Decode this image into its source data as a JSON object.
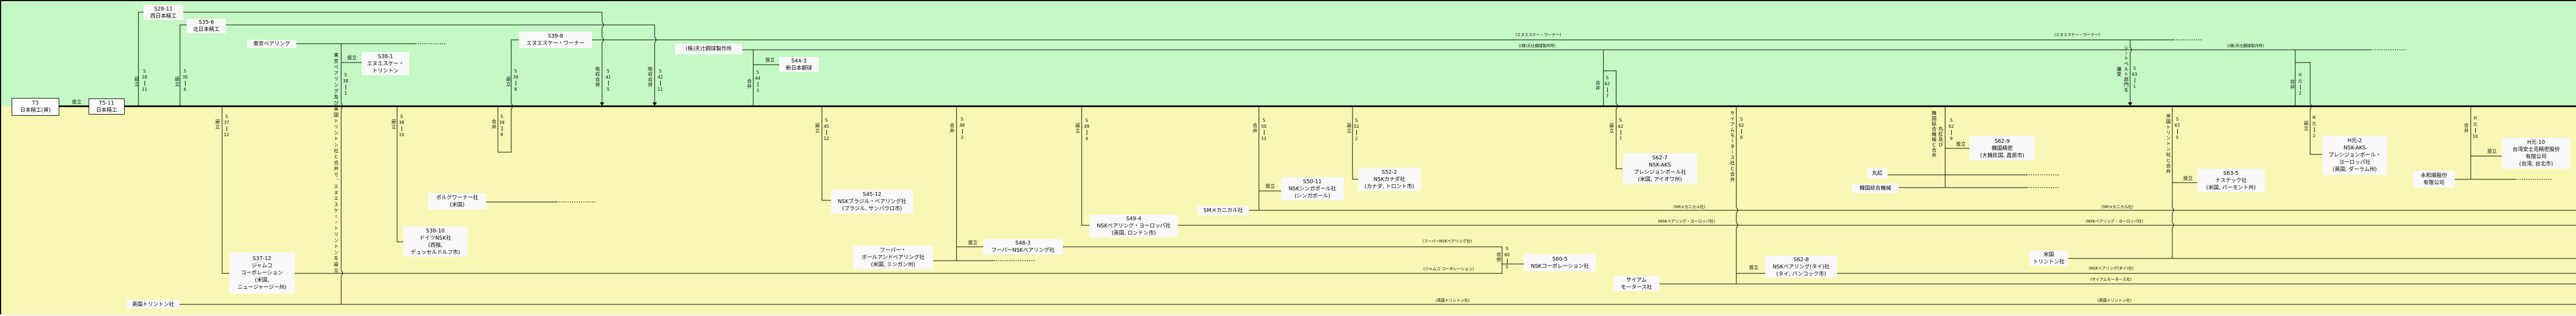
{
  "colors": {
    "domestic_band": "#c4f8c4",
    "overseas_band": "#f8f8b4",
    "label_bg": "#f8f8f8",
    "line": "#000000"
  },
  "companies": {
    "t3": {
      "lines": [
        "T3",
        "日本精工(資)"
      ]
    },
    "t5": {
      "lines": [
        "T5-11",
        "日本精工"
      ]
    },
    "nishi": {
      "lines": [
        "S28-11",
        "西日本精工"
      ]
    },
    "kita": {
      "lines": [
        "S35-6",
        "北日本精工"
      ]
    },
    "tokyo_bearing": {
      "lines": [
        "東京ベアリング"
      ]
    },
    "nsk_torrington": {
      "lines": [
        "S38-1",
        "エヌエスケー・",
        "トリントン"
      ]
    },
    "nsk_warner": {
      "lines": [
        "S39-8",
        "エヌエスケー・ワーナー"
      ]
    },
    "borg_warner": {
      "lines": [
        "ボルグワーナー社",
        "(米国)"
      ]
    },
    "nsk_germany": {
      "lines": [
        "S38-10",
        "ドイツNSK社",
        "(西独,",
        "デュッセルドルフ市)"
      ]
    },
    "jamco": {
      "lines": [
        "S37-12",
        "ジャムコ",
        "コーポレーション",
        "(米国,",
        "ニュージャージー州)"
      ]
    },
    "uk_torrington": {
      "lines": [
        "英国トリントン社"
      ]
    },
    "amatsuji": {
      "lines": [
        "(株)天辻鋼球製作所"
      ]
    },
    "shin_nihon_kokyu": {
      "lines": [
        "S44-3",
        "新日本鋼球"
      ]
    },
    "nsk_brazil": {
      "lines": [
        "S45-12",
        "NSKブラジル・ベアリング社",
        "(ブラジル, サンパウロ市)"
      ]
    },
    "hoover_ball": {
      "lines": [
        "フーバー・",
        "ボールアンドベアリング社",
        "(米国, ミシガン州)"
      ]
    },
    "hoover_nsk": {
      "lines": [
        "S48-3",
        "フーバーNSKベアリング社"
      ]
    },
    "nsk_europe": {
      "lines": [
        "S49-4",
        "NSKベアリング・ヨーロッパ社",
        "(英国, ロンドン市)"
      ]
    },
    "sm_mechanical": {
      "lines": [
        "SMメカニカル社"
      ]
    },
    "nsk_singapore": {
      "lines": [
        "S50-11",
        "NSKシンガポール社",
        "(シンガポール)"
      ]
    },
    "nsk_canada": {
      "lines": [
        "S52-2",
        "NSKカナダ社",
        "(カナダ, トロント市)"
      ]
    },
    "nsk_corporation": {
      "lines": [
        "S60-5",
        "NSKコーポレーション社"
      ]
    },
    "nsk_aks": {
      "lines": [
        "S62-7",
        "NSK-AKS",
        "プレシジョンボール社",
        "(米国, アイオワ州)"
      ]
    },
    "siam_motors": {
      "lines": [
        "サイアム",
        "モータース社"
      ]
    },
    "nsk_thai": {
      "lines": [
        "S62-8",
        "NSKベアリング(タイ)社",
        "(タイ, バンコック市)"
      ]
    },
    "marubeni": {
      "lines": [
        "丸紅"
      ]
    },
    "korea_sogo": {
      "lines": [
        "韓国綜合機械"
      ]
    },
    "korea_seimitsu": {
      "lines": [
        "S62-9",
        "韓国精密",
        "(大韓民国, 昌原市)"
      ]
    },
    "us_torrington": {
      "lines": [
        "米国",
        "トリントン社"
      ]
    },
    "nastech": {
      "lines": [
        "S63-5",
        "ナステック社",
        "(米国, バーモント州)"
      ]
    },
    "nsk_aks_europe": {
      "lines": [
        "H元-2",
        "NSK-AKS",
        "プレシジョンボール・",
        "ヨーロッパ社",
        "(英国, ダーラム州)"
      ]
    },
    "eiwa": {
      "lines": [
        "永和順股份",
        "有限公司"
      ]
    },
    "taiwan": {
      "lines": [
        "H元-10",
        "台湾安士克精密股份",
        "有限公司",
        "(台湾, 台北市)"
      ]
    }
  },
  "events": [
    {
      "action": "設立",
      "era": "S",
      "year": "28",
      "month": "11"
    },
    {
      "action": "設立",
      "era": "S",
      "year": "35",
      "month": "6"
    },
    {
      "action": "設立",
      "era": "S",
      "year": "37",
      "month": "12"
    },
    {
      "action": "設立",
      "era": "S",
      "year": "38",
      "month": "1"
    },
    {
      "action": "東京ベアリング及び英国トリントン社と合弁で、エヌエスケー・トリントンを設立"
    },
    {
      "action": "設立",
      "era": "S",
      "year": "38",
      "month": "10"
    },
    {
      "action": "設立",
      "era": "S",
      "year": "39",
      "month": "8"
    },
    {
      "action": "合弁",
      "era": "S",
      "year": "39",
      "month": "8"
    },
    {
      "action": "吸収合併",
      "era": "S",
      "year": "41",
      "month": "5"
    },
    {
      "action": "吸収合併",
      "era": "S",
      "year": "42",
      "month": "11"
    },
    {
      "action": "合弁",
      "era": "S",
      "year": "44",
      "month": "3"
    },
    {
      "action": "設立",
      "era": "S",
      "year": "45",
      "month": "12"
    },
    {
      "action": "合弁",
      "era": "S",
      "year": "48",
      "month": "3"
    },
    {
      "action": "設立",
      "era": "S",
      "year": "49",
      "month": "4"
    },
    {
      "action": "合弁",
      "era": "S",
      "year": "50",
      "month": "11"
    },
    {
      "action": "設立",
      "era": "S",
      "year": "52",
      "month": "2"
    },
    {
      "action": "合弁",
      "era": "S",
      "year": "62",
      "month": "7"
    },
    {
      "action": "設立",
      "era": "S",
      "year": "62",
      "month": "7"
    },
    {
      "action": "合併",
      "era": "S",
      "year": "60",
      "month": "5"
    },
    {
      "action": "サイアムモータース社と合弁",
      "era": "S",
      "year": "62",
      "month": "8"
    },
    {
      "action": "丸紅及び",
      "action2": "韓国綜合機械と合弁",
      "era": "S",
      "year": "62",
      "month": "9"
    },
    {
      "action": "シートベルト部門を",
      "action2": "譲受",
      "era": "S",
      "year": "63",
      "month": "1"
    },
    {
      "action": "米国トリントン社と合弁",
      "era": "S",
      "year": "63",
      "month": "5"
    },
    {
      "action": "設立",
      "era": "H",
      "year": "元",
      "month": "2"
    },
    {
      "action": "合弁",
      "era": "H",
      "year": "元",
      "month": "2"
    },
    {
      "action": "合弁",
      "era": "H",
      "year": "元",
      "month": "10"
    }
  ],
  "setsuritsu_label": "設立",
  "continuation_labels": {
    "nsk_warner": "(エヌエスケー・ワーナー)",
    "amatsuji": "((株)天辻鋼球製作所)",
    "sm": "(SMメカニカル社)",
    "europe": "(NSKベアリング・ヨーロッパ社)",
    "hoover_nsk": "(フーバーNSKベアリング社)",
    "jamco": "(ジャムコ コーポレーション)",
    "thai": "(NSKベアリング(タイ)社)",
    "siam": "(サイアムモータース社)",
    "uk_torrington": "(英国トリントン社)"
  }
}
